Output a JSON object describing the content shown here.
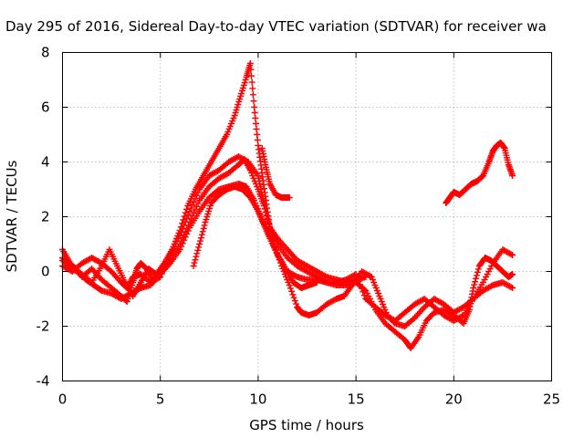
{
  "chart_data": {
    "type": "scatter",
    "title": "Day 295 of 2016, Sidereal Day-to-day VTEC variation (SDTVAR) for receiver wa",
    "xlabel": "GPS time / hours",
    "ylabel": "SDTVAR / TECUs",
    "xlim": [
      0,
      25
    ],
    "ylim": [
      -4,
      8
    ],
    "xticks": [
      0,
      5,
      10,
      15,
      20,
      25
    ],
    "yticks": [
      -4,
      -2,
      0,
      2,
      4,
      6,
      8
    ],
    "grid": true,
    "marker": "plus",
    "color": "#ff0000",
    "series": [
      {
        "points": [
          [
            0,
            0.5
          ],
          [
            0.5,
            0.2
          ],
          [
            1,
            -0.2
          ],
          [
            1.5,
            0.1
          ],
          [
            2,
            -0.3
          ],
          [
            2.5,
            -0.6
          ],
          [
            3,
            -0.9
          ],
          [
            3.3,
            -1.1
          ],
          [
            3.6,
            -0.4
          ],
          [
            3.8,
            0.1
          ],
          [
            4,
            0.3
          ],
          [
            4.3,
            0.1
          ],
          [
            4.6,
            -0.3
          ],
          [
            5,
            0
          ],
          [
            5.5,
            0.4
          ],
          [
            6,
            1.0
          ],
          [
            6.5,
            1.8
          ],
          [
            7,
            2.6
          ],
          [
            7.5,
            3.1
          ],
          [
            8,
            3.4
          ],
          [
            8.5,
            3.6
          ],
          [
            9,
            3.9
          ],
          [
            9.3,
            4.1
          ],
          [
            9.6,
            3.7
          ],
          [
            10,
            3.0
          ],
          [
            10.3,
            2.4
          ],
          [
            10.6,
            1.6
          ],
          [
            11,
            1.0
          ],
          [
            11.5,
            0.5
          ],
          [
            12,
            0.2
          ],
          [
            12.5,
            0
          ],
          [
            13,
            -0.2
          ],
          [
            13.5,
            -0.4
          ],
          [
            14,
            -0.5
          ],
          [
            14.5,
            -0.5
          ],
          [
            15,
            -0.4
          ],
          [
            15.5,
            -0.7
          ],
          [
            16,
            -1.4
          ],
          [
            16.5,
            -1.9
          ],
          [
            17,
            -2.2
          ],
          [
            17.5,
            -2.5
          ],
          [
            17.8,
            -2.8
          ],
          [
            18.2,
            -2.4
          ],
          [
            18.6,
            -1.8
          ],
          [
            19,
            -1.5
          ],
          [
            19.5,
            -1.4
          ],
          [
            20,
            -1.6
          ],
          [
            20.5,
            -1.9
          ],
          [
            20.8,
            -1.4
          ],
          [
            21,
            -0.6
          ],
          [
            21.3,
            0.2
          ],
          [
            21.6,
            0.5
          ],
          [
            21.9,
            0.4
          ],
          [
            22.2,
            0.2
          ],
          [
            22.5,
            0
          ],
          [
            22.8,
            -0.2
          ],
          [
            23,
            -0.1
          ]
        ]
      },
      {
        "points": [
          [
            0,
            0.2
          ],
          [
            0.5,
            0
          ],
          [
            1,
            0.3
          ],
          [
            1.5,
            0.5
          ],
          [
            2,
            0.3
          ],
          [
            2.5,
            0
          ],
          [
            3,
            -0.4
          ],
          [
            3.3,
            -0.6
          ],
          [
            3.6,
            -0.2
          ],
          [
            4,
            -0.1
          ],
          [
            4.5,
            -0.4
          ],
          [
            5,
            -0.2
          ],
          [
            5.5,
            0.6
          ],
          [
            6,
            1.3
          ],
          [
            6.5,
            2.2
          ],
          [
            7,
            3.0
          ],
          [
            7.5,
            3.5
          ],
          [
            8,
            3.7
          ],
          [
            8.5,
            4.0
          ],
          [
            9,
            4.2
          ],
          [
            9.5,
            4.0
          ],
          [
            10,
            3.5
          ],
          [
            10.2,
            2.8
          ],
          [
            10.5,
            1.9
          ],
          [
            10.8,
            1.0
          ],
          [
            11.2,
            0.2
          ],
          [
            11.6,
            -0.5
          ],
          [
            12,
            -1.3
          ],
          [
            12.2,
            -1.5
          ],
          [
            12.6,
            -1.6
          ],
          [
            13,
            -1.5
          ],
          [
            13.5,
            -1.2
          ],
          [
            14,
            -1.0
          ],
          [
            14.4,
            -0.9
          ],
          [
            14.8,
            -0.5
          ],
          [
            15.3,
            0
          ],
          [
            15.8,
            -0.2
          ],
          [
            16.2,
            -0.9
          ],
          [
            16.6,
            -1.6
          ],
          [
            17,
            -1.9
          ],
          [
            17.5,
            -2.0
          ],
          [
            18,
            -1.7
          ],
          [
            18.5,
            -1.3
          ],
          [
            19,
            -1.0
          ],
          [
            19.5,
            -1.2
          ],
          [
            20,
            -1.5
          ],
          [
            20.5,
            -1.3
          ],
          [
            21,
            -1.0
          ],
          [
            21.5,
            -0.7
          ],
          [
            22,
            -0.5
          ],
          [
            22.5,
            -0.4
          ],
          [
            23,
            -0.6
          ]
        ]
      },
      {
        "points": [
          [
            0,
            0.8
          ],
          [
            0.4,
            0.3
          ],
          [
            0.8,
            0
          ],
          [
            1.2,
            -0.3
          ],
          [
            1.6,
            -0.5
          ],
          [
            2,
            -0.7
          ],
          [
            2.5,
            -0.8
          ],
          [
            3,
            -1.0
          ],
          [
            3.5,
            -0.8
          ],
          [
            4,
            -0.6
          ],
          [
            4.5,
            -0.5
          ],
          [
            5,
            -0.1
          ],
          [
            5.5,
            0.3
          ],
          [
            6,
            0.8
          ],
          [
            6.5,
            1.6
          ],
          [
            7,
            2.2
          ],
          [
            7.5,
            2.7
          ],
          [
            8,
            3.0
          ],
          [
            8.5,
            3.1
          ],
          [
            9,
            3.2
          ],
          [
            9.4,
            3.1
          ],
          [
            9.8,
            2.6
          ],
          [
            10.2,
            1.9
          ],
          [
            10.6,
            1.3
          ],
          [
            11,
            0.6
          ],
          [
            11.5,
            0
          ],
          [
            12,
            -0.2
          ],
          [
            12.5,
            -0.3
          ],
          [
            13,
            -0.3
          ],
          [
            13.5,
            -0.4
          ],
          [
            14,
            -0.4
          ],
          [
            14.5,
            -0.3
          ],
          [
            15,
            -0.1
          ],
          [
            15.5,
            -1.0
          ],
          [
            16,
            -1.3
          ],
          [
            16.5,
            -1.6
          ],
          [
            17,
            -1.8
          ],
          [
            17.5,
            -1.5
          ],
          [
            18,
            -1.2
          ],
          [
            18.5,
            -1.0
          ],
          [
            19,
            -1.3
          ],
          [
            19.5,
            -1.6
          ],
          [
            20,
            -1.8
          ],
          [
            20.5,
            -1.6
          ],
          [
            21,
            -1.0
          ],
          [
            21.5,
            -0.4
          ],
          [
            22,
            0.3
          ],
          [
            22.5,
            0.8
          ],
          [
            23,
            0.6
          ]
        ]
      },
      {
        "points": [
          [
            0,
            0.4
          ],
          [
            0.5,
            0.1
          ],
          [
            1,
            -0.1
          ],
          [
            1.5,
            -0.4
          ],
          [
            2,
            0.2
          ],
          [
            2.4,
            0.8
          ],
          [
            2.8,
            0.2
          ],
          [
            3.2,
            -0.4
          ],
          [
            3.6,
            -0.9
          ],
          [
            4,
            -0.4
          ],
          [
            4.4,
            0.1
          ],
          [
            4.8,
            -0.1
          ],
          [
            5.2,
            0.3
          ],
          [
            5.6,
            0.8
          ],
          [
            6,
            1.5
          ],
          [
            6.4,
            2.4
          ],
          [
            6.8,
            3.0
          ],
          [
            7.2,
            3.5
          ],
          [
            7.6,
            4.0
          ],
          [
            8,
            4.5
          ],
          [
            8.4,
            5.0
          ],
          [
            8.8,
            5.7
          ],
          [
            9.1,
            6.4
          ],
          [
            9.4,
            7.1
          ],
          [
            9.6,
            7.6
          ],
          [
            9.8,
            6.0
          ],
          [
            10,
            4.6
          ],
          [
            10.2,
            3.6
          ],
          [
            10.4,
            2.6
          ],
          [
            10.6,
            1.6
          ],
          [
            11,
            1.2
          ],
          [
            11.5,
            0.8
          ],
          [
            12,
            0.4
          ],
          [
            12.5,
            0.2
          ],
          [
            13,
            0
          ],
          [
            13.5,
            -0.2
          ],
          [
            14,
            -0.3
          ],
          [
            14.5,
            -0.4
          ],
          [
            15,
            -0.3
          ],
          [
            15.5,
            -0.2
          ]
        ]
      },
      {
        "points": [
          [
            6.7,
            0.2
          ],
          [
            7,
            1.0
          ],
          [
            7.3,
            1.8
          ],
          [
            7.6,
            2.5
          ],
          [
            8,
            2.8
          ],
          [
            8.4,
            3.0
          ],
          [
            8.8,
            3.1
          ],
          [
            9.2,
            3.0
          ],
          [
            9.6,
            2.7
          ],
          [
            10,
            2.2
          ],
          [
            10.3,
            1.7
          ],
          [
            10.6,
            1.2
          ],
          [
            11,
            0.6
          ],
          [
            11.4,
            0.1
          ],
          [
            11.8,
            -0.4
          ],
          [
            12.2,
            -0.6
          ],
          [
            12.6,
            -0.5
          ],
          [
            13,
            -0.4
          ]
        ]
      },
      {
        "points": [
          [
            10.2,
            4.5
          ],
          [
            10.4,
            3.8
          ],
          [
            10.6,
            3.2
          ],
          [
            10.9,
            2.8
          ],
          [
            11.2,
            2.7
          ],
          [
            11.6,
            2.7
          ]
        ]
      },
      {
        "points": [
          [
            19.6,
            2.5
          ],
          [
            19.8,
            2.7
          ],
          [
            20,
            2.9
          ],
          [
            20.3,
            2.8
          ],
          [
            20.6,
            3.0
          ],
          [
            20.9,
            3.2
          ],
          [
            21.2,
            3.3
          ],
          [
            21.5,
            3.5
          ],
          [
            21.8,
            4.0
          ],
          [
            22,
            4.4
          ],
          [
            22.2,
            4.6
          ],
          [
            22.4,
            4.7
          ],
          [
            22.6,
            4.5
          ],
          [
            22.8,
            3.9
          ],
          [
            23,
            3.5
          ]
        ]
      }
    ]
  }
}
